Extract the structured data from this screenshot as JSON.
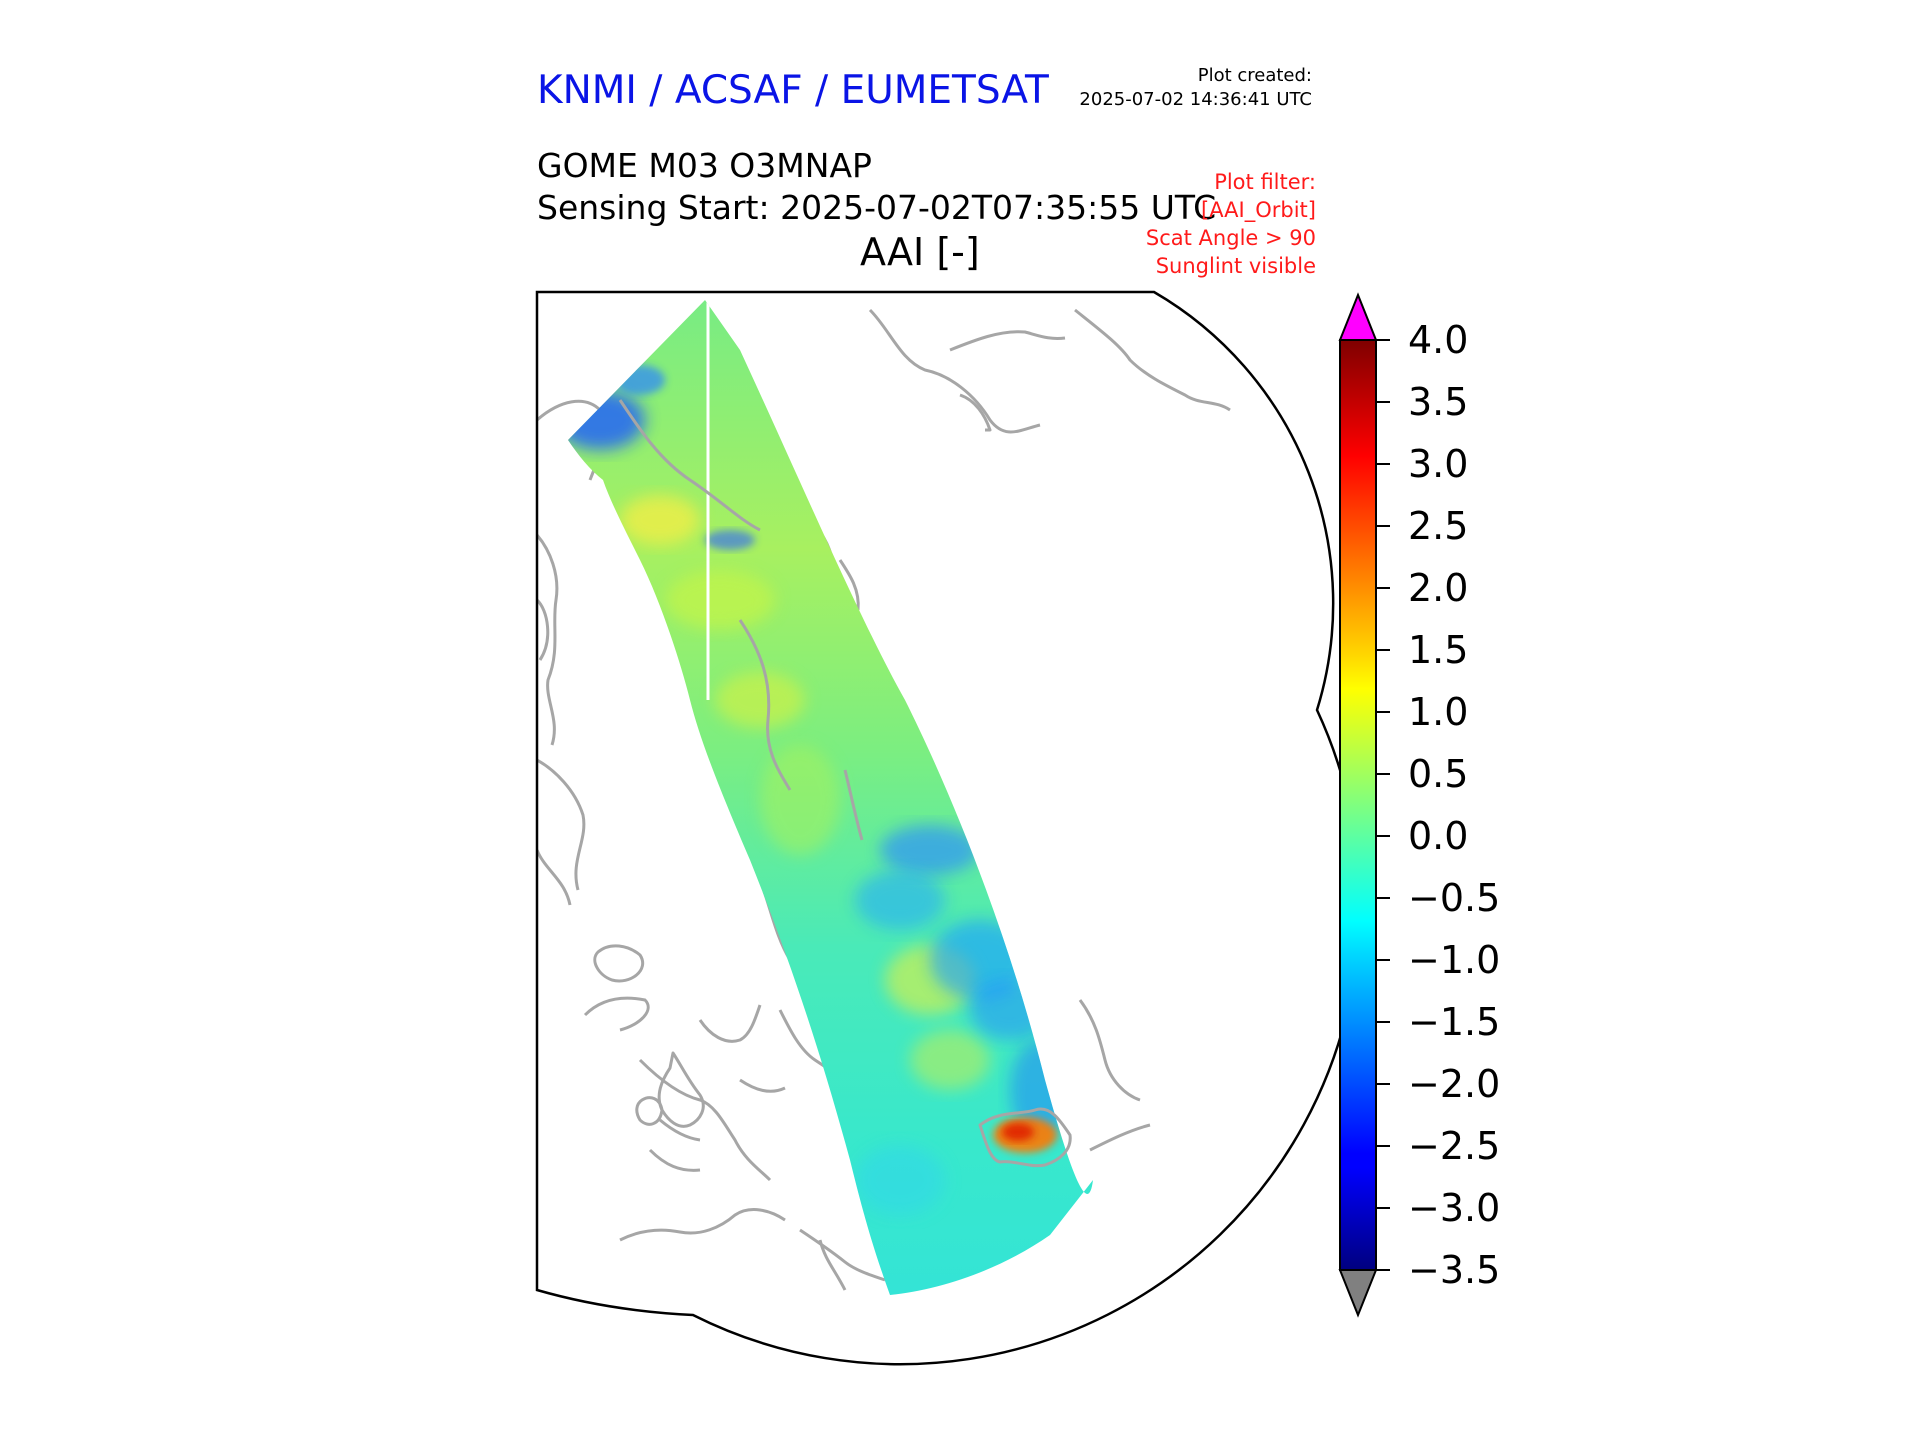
{
  "header": {
    "brand": "KNMI / ACSAF / EUMETSAT",
    "created_label": "Plot created:",
    "created_value": "2025-07-02 14:36:41 UTC",
    "product": "GOME M03 O3MNAP",
    "sensing_start": "Sensing Start: 2025-07-02T07:35:55 UTC",
    "variable": "AAI [-]"
  },
  "filters": {
    "label": "Plot filter:",
    "orbit": "[AAI_Orbit]",
    "scat_angle": "Scat Angle > 90",
    "sunglint": "Sunglint visible"
  },
  "colorbar": {
    "min": -3.5,
    "max": 4.0,
    "ticks": [
      "4.0",
      "3.5",
      "3.0",
      "2.5",
      "2.0",
      "1.5",
      "1.0",
      "0.5",
      "0.0",
      "−0.5",
      "−1.0",
      "−1.5",
      "−2.0",
      "−2.5",
      "−3.0",
      "−3.5"
    ],
    "colormap": "jet",
    "over_color": "#ff00ff",
    "under_color": "#808080"
  },
  "map": {
    "projection": "polar-stereographic",
    "coastline_color": "#a6a6a6",
    "swath_dominant_colors": [
      "#6ef08a",
      "#37f0d2",
      "#20b4ff",
      "#f0f03c",
      "#ff4a00"
    ]
  }
}
